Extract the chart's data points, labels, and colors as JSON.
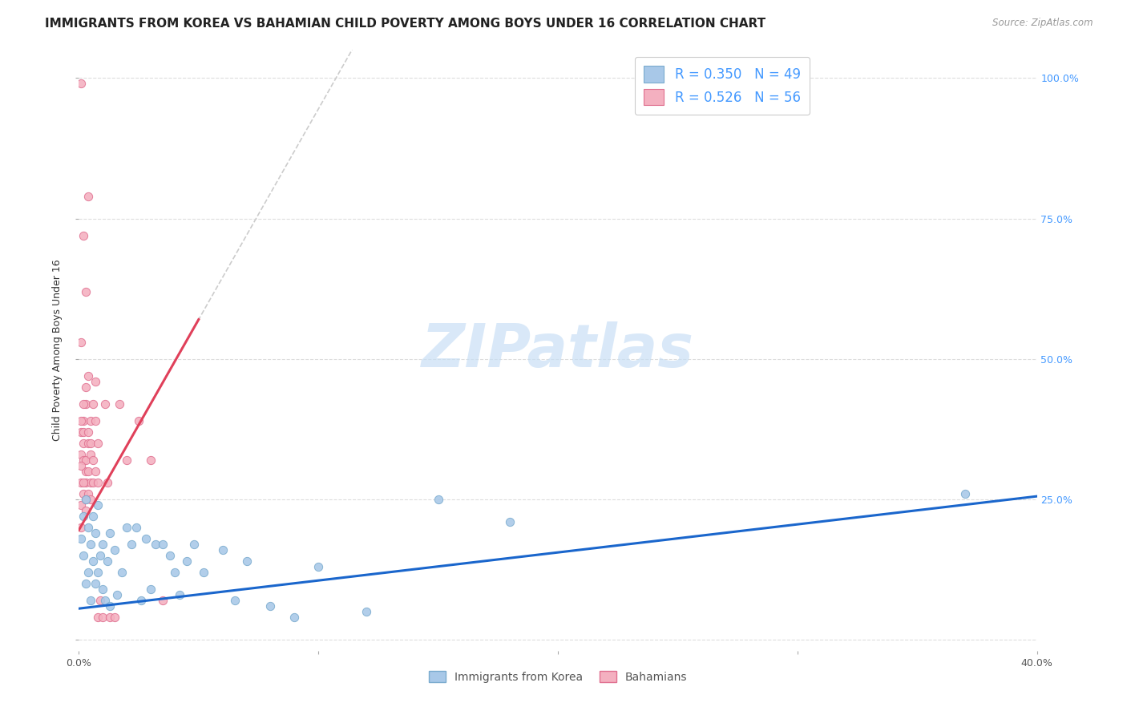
{
  "title": "IMMIGRANTS FROM KOREA VS BAHAMIAN CHILD POVERTY AMONG BOYS UNDER 16 CORRELATION CHART",
  "source": "Source: ZipAtlas.com",
  "ylabel": "Child Poverty Among Boys Under 16",
  "xlim": [
    0.0,
    0.4
  ],
  "ylim": [
    -0.02,
    1.05
  ],
  "yticks": [
    0.0,
    0.25,
    0.5,
    0.75,
    1.0
  ],
  "ytick_labels_right": [
    "",
    "25.0%",
    "50.0%",
    "75.0%",
    "100.0%"
  ],
  "xticks": [
    0.0,
    0.1,
    0.2,
    0.3,
    0.4
  ],
  "xtick_labels": [
    "0.0%",
    "",
    "",
    "",
    "40.0%"
  ],
  "legend_label_blue": "R = 0.350   N = 49",
  "legend_label_pink": "R = 0.526   N = 56",
  "legend_text_color": "#4499ff",
  "watermark": "ZIPatlas",
  "korea_color": "#a8c8e8",
  "korea_edge": "#7aabce",
  "bahamas_color": "#f4b0c0",
  "bahamas_edge": "#e07090",
  "scatter_size": 55,
  "korea_points": [
    [
      0.001,
      0.18
    ],
    [
      0.002,
      0.15
    ],
    [
      0.002,
      0.22
    ],
    [
      0.003,
      0.1
    ],
    [
      0.003,
      0.25
    ],
    [
      0.004,
      0.2
    ],
    [
      0.004,
      0.12
    ],
    [
      0.005,
      0.17
    ],
    [
      0.005,
      0.07
    ],
    [
      0.006,
      0.22
    ],
    [
      0.006,
      0.14
    ],
    [
      0.007,
      0.1
    ],
    [
      0.007,
      0.19
    ],
    [
      0.008,
      0.12
    ],
    [
      0.008,
      0.24
    ],
    [
      0.009,
      0.15
    ],
    [
      0.01,
      0.17
    ],
    [
      0.01,
      0.09
    ],
    [
      0.011,
      0.07
    ],
    [
      0.012,
      0.14
    ],
    [
      0.013,
      0.19
    ],
    [
      0.013,
      0.06
    ],
    [
      0.015,
      0.16
    ],
    [
      0.016,
      0.08
    ],
    [
      0.018,
      0.12
    ],
    [
      0.02,
      0.2
    ],
    [
      0.022,
      0.17
    ],
    [
      0.024,
      0.2
    ],
    [
      0.026,
      0.07
    ],
    [
      0.028,
      0.18
    ],
    [
      0.03,
      0.09
    ],
    [
      0.032,
      0.17
    ],
    [
      0.035,
      0.17
    ],
    [
      0.038,
      0.15
    ],
    [
      0.04,
      0.12
    ],
    [
      0.042,
      0.08
    ],
    [
      0.045,
      0.14
    ],
    [
      0.048,
      0.17
    ],
    [
      0.052,
      0.12
    ],
    [
      0.06,
      0.16
    ],
    [
      0.065,
      0.07
    ],
    [
      0.07,
      0.14
    ],
    [
      0.08,
      0.06
    ],
    [
      0.09,
      0.04
    ],
    [
      0.1,
      0.13
    ],
    [
      0.12,
      0.05
    ],
    [
      0.15,
      0.25
    ],
    [
      0.18,
      0.21
    ],
    [
      0.37,
      0.26
    ]
  ],
  "bahamas_points": [
    [
      0.001,
      0.24
    ],
    [
      0.001,
      0.2
    ],
    [
      0.001,
      0.28
    ],
    [
      0.001,
      0.33
    ],
    [
      0.001,
      0.37
    ],
    [
      0.002,
      0.26
    ],
    [
      0.002,
      0.32
    ],
    [
      0.002,
      0.37
    ],
    [
      0.002,
      0.39
    ],
    [
      0.002,
      0.35
    ],
    [
      0.003,
      0.28
    ],
    [
      0.003,
      0.32
    ],
    [
      0.003,
      0.42
    ],
    [
      0.003,
      0.3
    ],
    [
      0.003,
      0.23
    ],
    [
      0.004,
      0.37
    ],
    [
      0.004,
      0.35
    ],
    [
      0.004,
      0.3
    ],
    [
      0.004,
      0.26
    ],
    [
      0.005,
      0.33
    ],
    [
      0.005,
      0.35
    ],
    [
      0.005,
      0.39
    ],
    [
      0.005,
      0.28
    ],
    [
      0.006,
      0.42
    ],
    [
      0.006,
      0.32
    ],
    [
      0.007,
      0.46
    ],
    [
      0.007,
      0.39
    ],
    [
      0.008,
      0.35
    ],
    [
      0.008,
      0.04
    ],
    [
      0.009,
      0.07
    ],
    [
      0.01,
      0.04
    ],
    [
      0.011,
      0.42
    ],
    [
      0.012,
      0.28
    ],
    [
      0.013,
      0.04
    ],
    [
      0.015,
      0.04
    ],
    [
      0.017,
      0.42
    ],
    [
      0.02,
      0.32
    ],
    [
      0.025,
      0.39
    ],
    [
      0.03,
      0.32
    ],
    [
      0.001,
      0.53
    ],
    [
      0.002,
      0.72
    ],
    [
      0.001,
      0.99
    ],
    [
      0.004,
      0.79
    ],
    [
      0.003,
      0.62
    ],
    [
      0.001,
      0.39
    ],
    [
      0.002,
      0.42
    ],
    [
      0.003,
      0.45
    ],
    [
      0.004,
      0.47
    ],
    [
      0.005,
      0.25
    ],
    [
      0.006,
      0.28
    ],
    [
      0.007,
      0.3
    ],
    [
      0.008,
      0.28
    ],
    [
      0.001,
      0.31
    ],
    [
      0.002,
      0.28
    ],
    [
      0.003,
      0.25
    ],
    [
      0.035,
      0.07
    ]
  ],
  "korea_line_color": "#1a66cc",
  "korea_line_x": [
    0.0,
    0.4
  ],
  "korea_line_y": [
    0.055,
    0.255
  ],
  "bahamas_line_x": [
    0.0,
    0.05
  ],
  "bahamas_line_y": [
    0.195,
    0.57
  ],
  "bahamas_line_color": "#e0405a",
  "bahamas_dashed_color": "#cccccc",
  "grid_color": "#dddddd",
  "bg_color": "#ffffff",
  "title_fontsize": 11,
  "axis_label_fontsize": 9,
  "tick_fontsize": 9,
  "legend_fontsize": 12
}
